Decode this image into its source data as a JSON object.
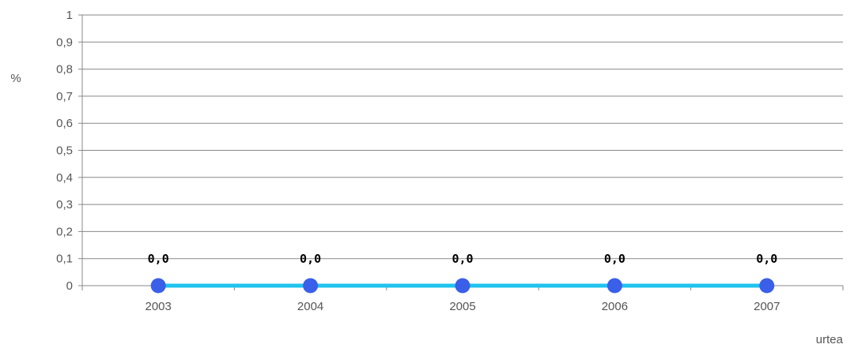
{
  "chart_data": {
    "type": "line",
    "title": "",
    "xlabel": "urtea",
    "ylabel": "%",
    "categories": [
      "2003",
      "2004",
      "2005",
      "2006",
      "2007"
    ],
    "series": [
      {
        "values": [
          0.0,
          0.0,
          0.0,
          0.0,
          0.0
        ],
        "data_labels": [
          "0,0",
          "0,0",
          "0,0",
          "0,0",
          "0,0"
        ],
        "line_color": "#1fc3ee",
        "marker_color": "#3a5fe8"
      }
    ],
    "ylim": [
      0,
      1
    ],
    "y_ticks": [
      "0",
      "0,1",
      "0,2",
      "0,3",
      "0,4",
      "0,5",
      "0,6",
      "0,7",
      "0,8",
      "0,9",
      "1"
    ],
    "grid": true,
    "grid_color": "#888888",
    "axis_color": "#888888"
  }
}
